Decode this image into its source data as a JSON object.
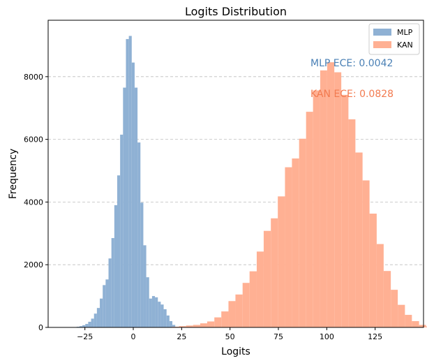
{
  "chart_data": {
    "type": "bar",
    "title": "Logits Distribution",
    "xlabel": "Logits",
    "ylabel": "Frequency",
    "xlim": [
      -44,
      150
    ],
    "ylim": [
      0,
      9800
    ],
    "grid": "y-dashed",
    "legend_position": "top-right",
    "x_ticks": [
      -25,
      0,
      25,
      50,
      75,
      100,
      125
    ],
    "x_tick_labels": [
      "−25",
      "0",
      "25",
      "50",
      "75",
      "100",
      "125"
    ],
    "y_ticks": [
      0,
      2000,
      4000,
      6000,
      8000
    ],
    "y_tick_labels": [
      "0",
      "2000",
      "4000",
      "6000",
      "8000"
    ],
    "series": [
      {
        "name": "MLP",
        "color": "#8fb1d4",
        "bins": [
          [
            -32.3,
            -30.8,
            5
          ],
          [
            -30.8,
            -29.3,
            10
          ],
          [
            -29.3,
            -27.8,
            20
          ],
          [
            -27.8,
            -26.3,
            40
          ],
          [
            -26.3,
            -24.8,
            70
          ],
          [
            -24.8,
            -23.3,
            110
          ],
          [
            -23.3,
            -21.8,
            180
          ],
          [
            -21.8,
            -20.3,
            280
          ],
          [
            -20.3,
            -18.8,
            440
          ],
          [
            -18.8,
            -17.3,
            620
          ],
          [
            -17.3,
            -15.8,
            920
          ],
          [
            -15.8,
            -14.3,
            1350
          ],
          [
            -14.3,
            -12.8,
            1530
          ],
          [
            -12.8,
            -11.3,
            2200
          ],
          [
            -11.3,
            -9.8,
            2850
          ],
          [
            -9.8,
            -8.3,
            3900
          ],
          [
            -8.3,
            -6.8,
            4850
          ],
          [
            -6.8,
            -5.3,
            6150
          ],
          [
            -5.3,
            -3.8,
            7650
          ],
          [
            -3.8,
            -2.3,
            9200
          ],
          [
            -2.3,
            -0.8,
            9300
          ],
          [
            -0.8,
            0.7,
            8450
          ],
          [
            0.7,
            2.2,
            7650
          ],
          [
            2.2,
            3.7,
            5900
          ],
          [
            3.7,
            5.2,
            3980
          ],
          [
            5.2,
            6.7,
            2620
          ],
          [
            6.7,
            8.2,
            1600
          ],
          [
            8.2,
            9.7,
            920
          ],
          [
            9.7,
            11.2,
            1000
          ],
          [
            11.2,
            12.7,
            960
          ],
          [
            12.7,
            14.2,
            820
          ],
          [
            14.2,
            15.7,
            730
          ],
          [
            15.7,
            17.2,
            580
          ],
          [
            17.2,
            18.7,
            380
          ],
          [
            18.7,
            20.2,
            200
          ],
          [
            20.2,
            21.7,
            80
          ],
          [
            21.7,
            23.2,
            20
          ]
        ]
      },
      {
        "name": "KAN",
        "color": "#ffb093",
        "bins": [
          [
            20,
            23.6,
            20
          ],
          [
            23.6,
            27.3,
            40
          ],
          [
            27.3,
            30.9,
            60
          ],
          [
            30.9,
            34.6,
            80
          ],
          [
            34.6,
            38.2,
            130
          ],
          [
            38.2,
            41.9,
            190
          ],
          [
            41.9,
            45.5,
            320
          ],
          [
            45.5,
            49.2,
            510
          ],
          [
            49.2,
            52.8,
            840
          ],
          [
            52.8,
            56.5,
            1050
          ],
          [
            56.5,
            60.1,
            1420
          ],
          [
            60.1,
            63.8,
            1790
          ],
          [
            63.8,
            67.4,
            2420
          ],
          [
            67.4,
            71.1,
            3080
          ],
          [
            71.1,
            74.7,
            3480
          ],
          [
            74.7,
            78.4,
            4180
          ],
          [
            78.4,
            82.0,
            5110
          ],
          [
            82.0,
            85.7,
            5390
          ],
          [
            85.7,
            89.3,
            6020
          ],
          [
            89.3,
            92.9,
            6880
          ],
          [
            92.9,
            96.6,
            7560
          ],
          [
            96.6,
            100.2,
            8200
          ],
          [
            100.2,
            103.9,
            8460
          ],
          [
            103.9,
            107.5,
            8140
          ],
          [
            107.5,
            111.2,
            7420
          ],
          [
            111.2,
            114.8,
            6640
          ],
          [
            114.8,
            118.5,
            5580
          ],
          [
            118.5,
            122.1,
            4690
          ],
          [
            122.1,
            125.8,
            3630
          ],
          [
            125.8,
            129.4,
            2660
          ],
          [
            129.4,
            133.1,
            1800
          ],
          [
            133.1,
            136.7,
            1200
          ],
          [
            136.7,
            140.4,
            720
          ],
          [
            140.4,
            144.0,
            400
          ],
          [
            144.0,
            147.7,
            200
          ],
          [
            147.7,
            151.3,
            80
          ],
          [
            151.3,
            155.0,
            30
          ]
        ]
      }
    ],
    "annotations": [
      {
        "text": "MLP ECE: 0.0042",
        "color": "#4a80b5"
      },
      {
        "text": "KAN ECE: 0.0828",
        "color": "#f27a4f"
      }
    ]
  }
}
